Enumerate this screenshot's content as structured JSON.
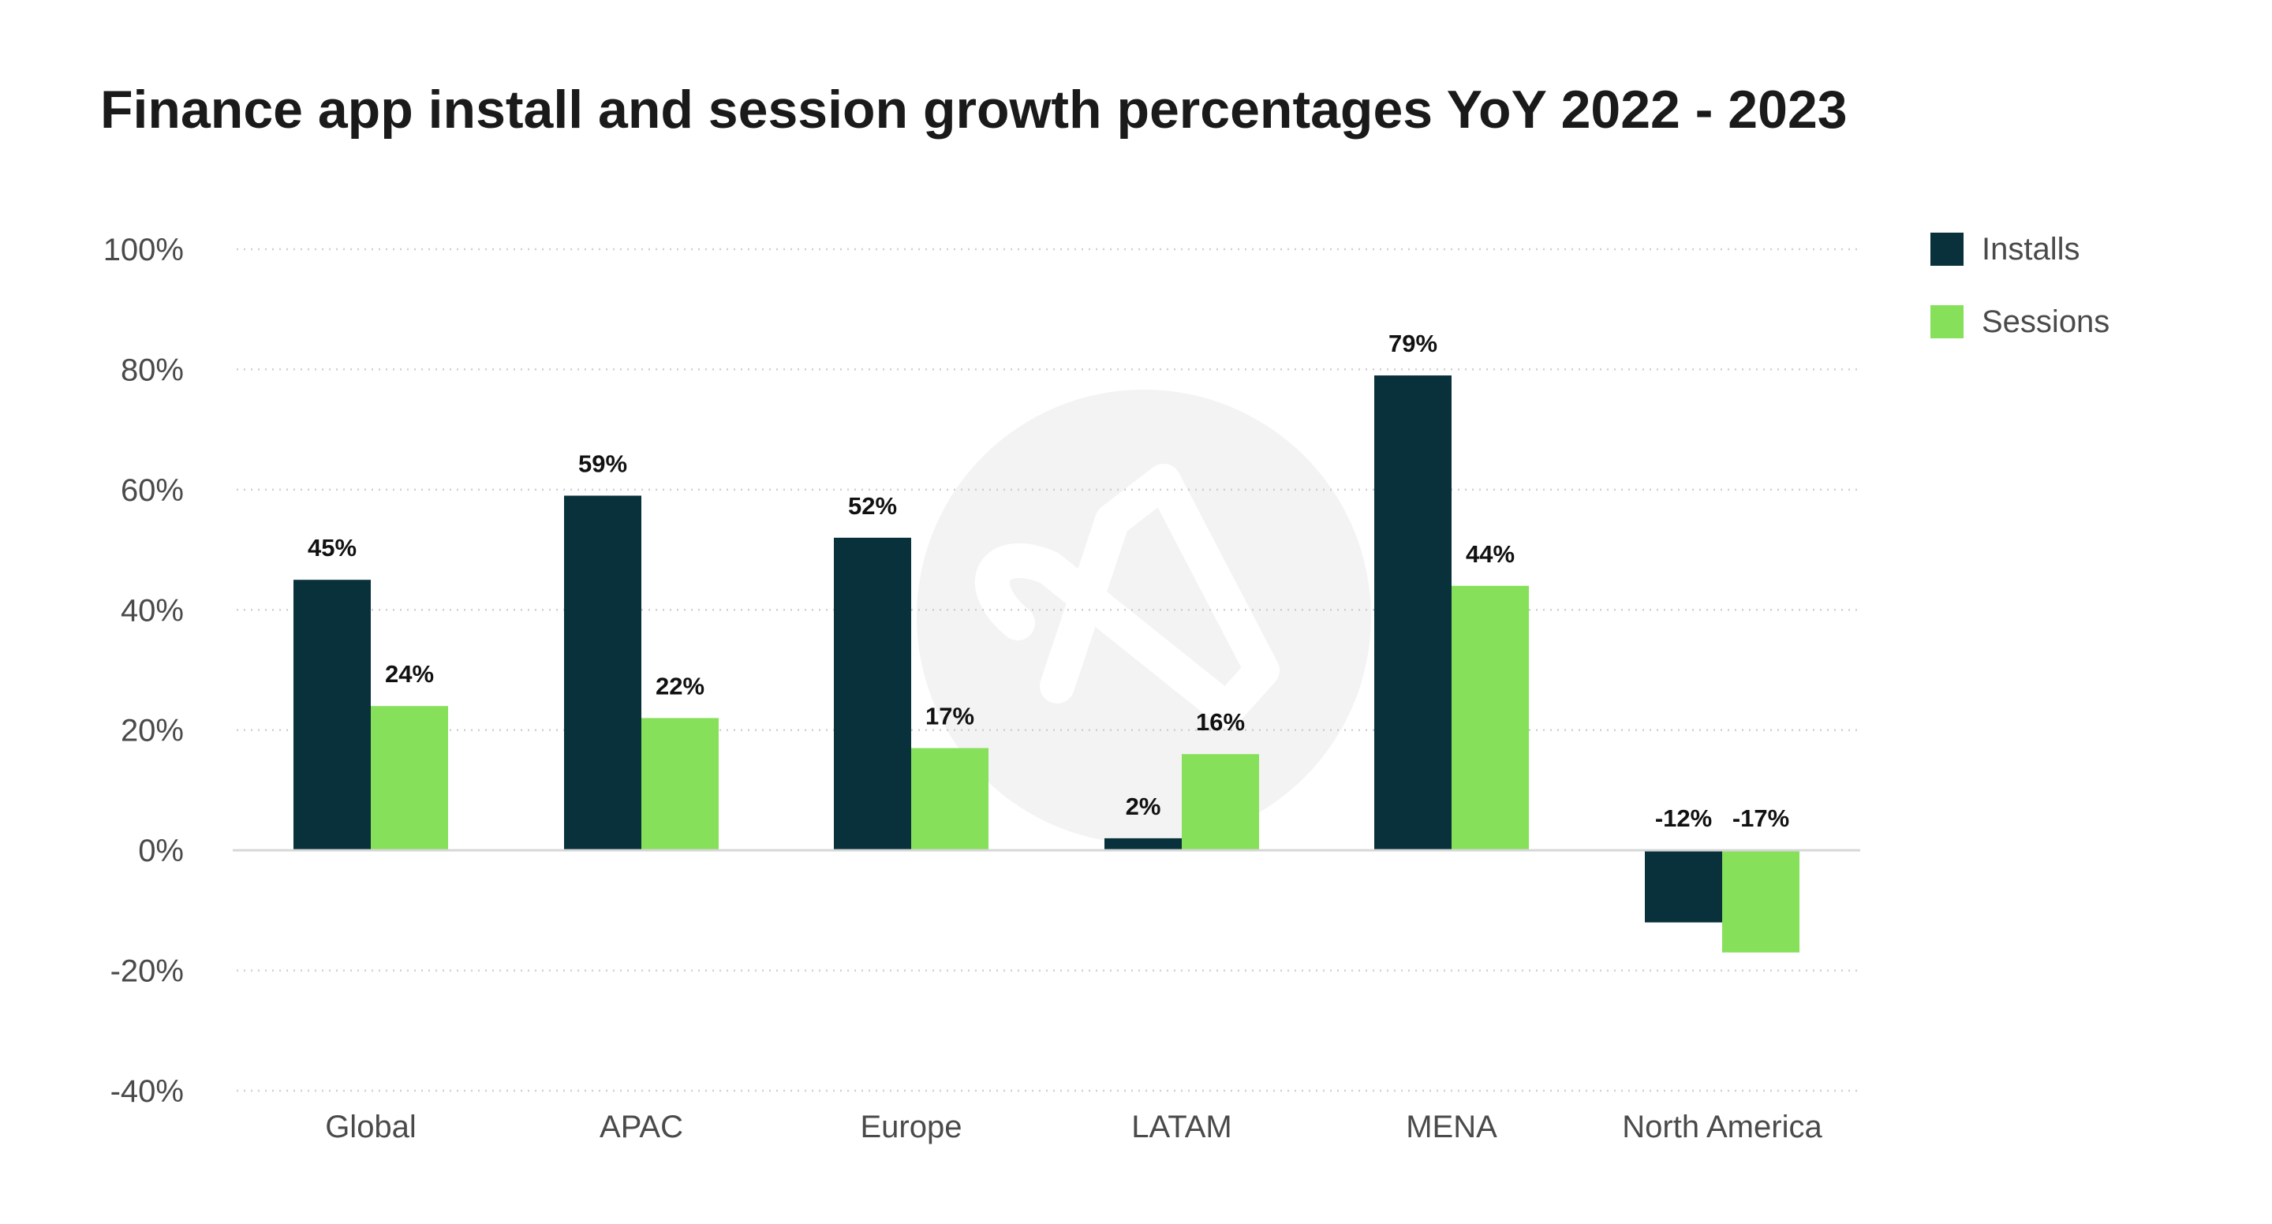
{
  "chart_data": {
    "type": "bar",
    "title": "Finance app install and session growth percentages YoY 2022 - 2023",
    "xlabel": "",
    "ylabel": "",
    "categories": [
      "Global",
      "APAC",
      "Europe",
      "LATAM",
      "MENA",
      "North America"
    ],
    "series": [
      {
        "name": "Installs",
        "color": "#09313b",
        "values": [
          45,
          59,
          52,
          2,
          79,
          -12
        ],
        "labels": [
          "45%",
          "59%",
          "52%",
          "2%",
          "79%",
          "-12%"
        ]
      },
      {
        "name": "Sessions",
        "color": "#86e05a",
        "values": [
          24,
          22,
          17,
          16,
          44,
          -17
        ],
        "labels": [
          "24%",
          "22%",
          "17%",
          "16%",
          "44%",
          "-17%"
        ]
      }
    ],
    "ylim": [
      -40,
      100
    ],
    "yticks": [
      100,
      80,
      60,
      40,
      20,
      0,
      -20,
      -40
    ],
    "ytick_labels": [
      "100%",
      "80%",
      "60%",
      "40%",
      "20%",
      "0%",
      "-20%",
      "-40%"
    ],
    "grid": true,
    "legend": "top-right"
  }
}
